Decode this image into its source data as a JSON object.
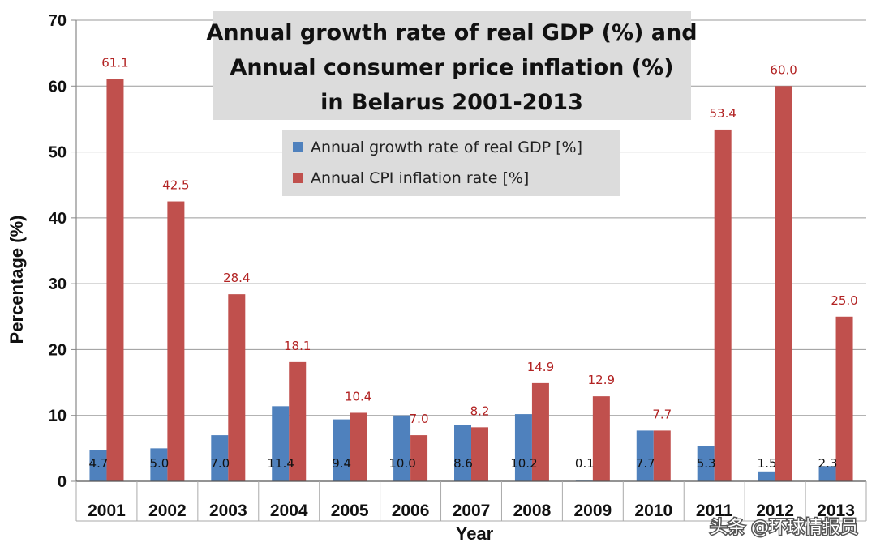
{
  "chart_data": {
    "type": "bar",
    "title_lines": [
      "Annual growth rate of real GDP (%) and",
      "Annual consumer price inflation (%)",
      "in Belarus 2001-2013"
    ],
    "xlabel": "Year",
    "ylabel": "Percentage (%)",
    "ylim": [
      0,
      70
    ],
    "yticks": [
      0,
      10,
      20,
      30,
      40,
      50,
      60,
      70
    ],
    "grid": true,
    "legend_position": "top-center",
    "categories": [
      "2001",
      "2002",
      "2003",
      "2004",
      "2005",
      "2006",
      "2007",
      "2008",
      "2009",
      "2010",
      "2011",
      "2012",
      "2013"
    ],
    "series": [
      {
        "name": "Annual growth rate of real GDP [%]",
        "color": "#4f81bd",
        "values": [
          4.7,
          5.0,
          7.0,
          11.4,
          9.4,
          10.0,
          8.6,
          10.2,
          0.1,
          7.7,
          5.3,
          1.5,
          2.3
        ],
        "labels": [
          "4.7",
          "5.0",
          "7.0",
          "11.4",
          "9.4",
          "10.0",
          "8.6",
          "10.2",
          "0.1",
          "7.7",
          "5.3",
          "1.5",
          "2.3"
        ]
      },
      {
        "name": "Annual CPI inflation rate [%]",
        "color": "#c0504d",
        "values": [
          61.1,
          42.5,
          28.4,
          18.1,
          10.4,
          7.0,
          8.2,
          14.9,
          12.9,
          7.7,
          53.4,
          60.0,
          25.0
        ],
        "labels": [
          "61.1",
          "42.5",
          "28.4",
          "18.1",
          "10.4",
          "7.0",
          "8.2",
          "14.9",
          "12.9",
          "7.7",
          "53.4",
          "60.0",
          "25.0"
        ]
      }
    ]
  },
  "watermark": "头条 @环球情报员"
}
